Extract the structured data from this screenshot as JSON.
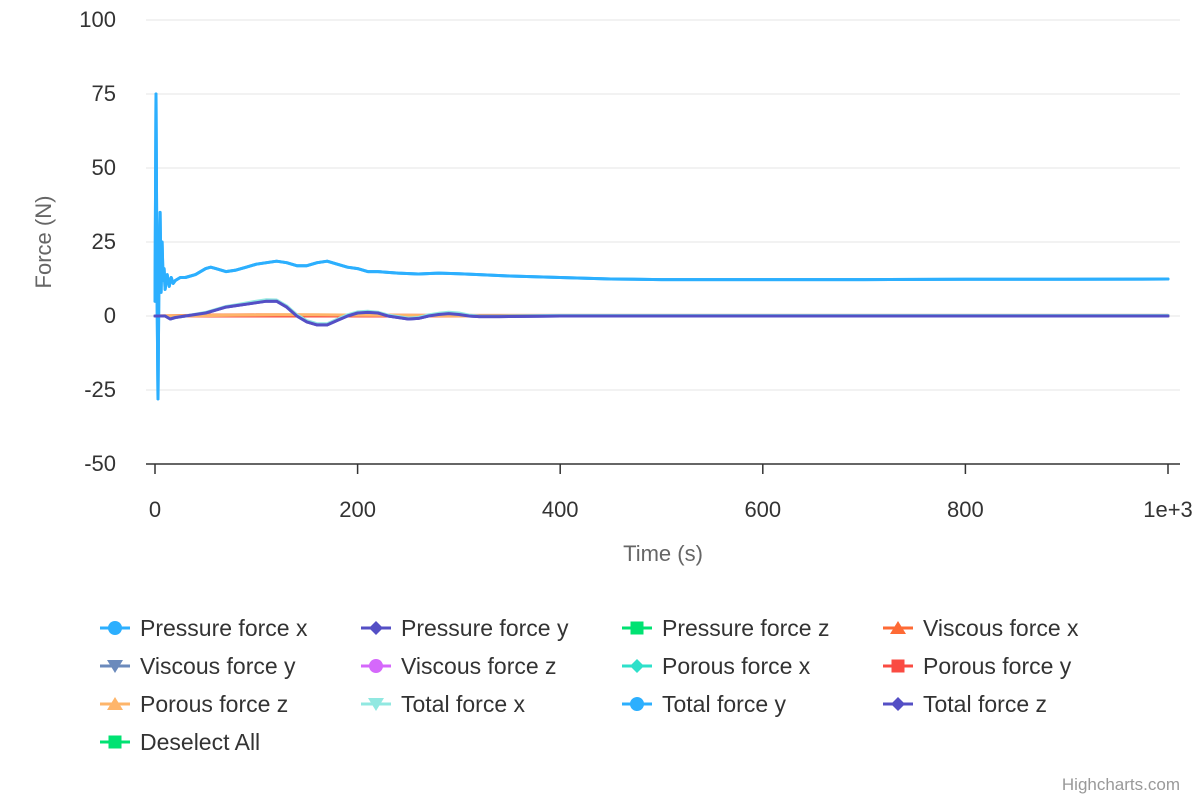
{
  "chart_data": {
    "type": "line",
    "title": "",
    "xlabel": "Time (s)",
    "ylabel": "Force (N)",
    "xlim": [
      0,
      1000
    ],
    "ylim": [
      -50,
      100
    ],
    "x_ticks": [
      "0",
      "200",
      "400",
      "600",
      "800",
      "1e+3"
    ],
    "y_ticks": [
      "100",
      "75",
      "50",
      "25",
      "0",
      "-25",
      "-50"
    ],
    "grid": true,
    "legend_position": "bottom",
    "series": [
      {
        "name": "Pressure force x",
        "color": "#2caffe",
        "marker": "circle",
        "x": [
          0,
          1,
          2,
          3,
          4,
          5,
          6,
          7,
          8,
          9,
          10,
          12,
          14,
          16,
          18,
          20,
          25,
          30,
          40,
          50,
          55,
          60,
          70,
          80,
          90,
          100,
          110,
          120,
          130,
          140,
          150,
          160,
          170,
          180,
          190,
          200,
          210,
          220,
          240,
          260,
          280,
          300,
          320,
          350,
          400,
          450,
          500,
          600,
          700,
          800,
          900,
          1000
        ],
        "y": [
          5,
          75,
          10,
          -28,
          20,
          35,
          8,
          25,
          12,
          16,
          9,
          14,
          10,
          13,
          11,
          12,
          13,
          13,
          14,
          16,
          16.5,
          16,
          15,
          15.5,
          16.5,
          17.5,
          18,
          18.5,
          18,
          17,
          17,
          18,
          18.5,
          17.5,
          16.5,
          16,
          15,
          15,
          14.5,
          14.2,
          14.5,
          14.3,
          14,
          13.5,
          13,
          12.5,
          12.3,
          12.3,
          12.3,
          12.4,
          12.4,
          12.5
        ]
      },
      {
        "name": "Pressure force y",
        "color": "#544fc5",
        "marker": "diamond",
        "x": [
          0,
          10,
          15,
          20,
          30,
          40,
          50,
          60,
          70,
          80,
          90,
          100,
          110,
          120,
          130,
          140,
          150,
          160,
          170,
          180,
          190,
          200,
          210,
          220,
          230,
          240,
          250,
          260,
          270,
          280,
          290,
          300,
          310,
          320,
          340,
          400,
          500,
          600,
          700,
          800,
          900,
          1000
        ],
        "y": [
          0,
          0,
          -1,
          -0.5,
          0,
          0.5,
          1,
          2,
          3,
          3.5,
          4,
          4.5,
          5,
          5,
          3,
          0,
          -2,
          -3,
          -3,
          -1.5,
          0,
          1,
          1.2,
          1,
          0,
          -0.5,
          -1,
          -0.8,
          0,
          0.5,
          0.8,
          0.5,
          0,
          -0.2,
          -0.2,
          0,
          0,
          0,
          0,
          0,
          0,
          0
        ]
      },
      {
        "name": "Pressure force z",
        "color": "#00e272",
        "marker": "square",
        "x": [
          0,
          1000
        ],
        "y": [
          0,
          0
        ]
      },
      {
        "name": "Viscous force x",
        "color": "#fe6a35",
        "marker": "triangle",
        "x": [
          0,
          50,
          100,
          200,
          300,
          1000
        ],
        "y": [
          0,
          0.3,
          0.4,
          0.3,
          0.2,
          0.2
        ]
      },
      {
        "name": "Viscous force y",
        "color": "#6b8abc",
        "marker": "triangle-down",
        "x": [
          0,
          1000
        ],
        "y": [
          0,
          0
        ]
      },
      {
        "name": "Viscous force z",
        "color": "#d568fb",
        "marker": "circle",
        "x": [
          0,
          1000
        ],
        "y": [
          0,
          0
        ]
      },
      {
        "name": "Porous force x",
        "color": "#2ee0ca",
        "marker": "diamond",
        "x": [
          0,
          1000
        ],
        "y": [
          0,
          0
        ]
      },
      {
        "name": "Porous force y",
        "color": "#fa4b42",
        "marker": "square",
        "x": [
          0,
          1000
        ],
        "y": [
          0,
          0
        ]
      },
      {
        "name": "Porous force z",
        "color": "#feb56a",
        "marker": "triangle",
        "x": [
          0,
          40,
          80,
          120,
          160,
          200,
          240,
          280,
          320,
          1000
        ],
        "y": [
          0,
          0.1,
          0.3,
          0.4,
          0.4,
          0.3,
          0.2,
          0.1,
          0,
          0
        ]
      },
      {
        "name": "Total force x",
        "color": "#91e8e1",
        "marker": "triangle-down",
        "x": [
          0,
          10,
          15,
          20,
          30,
          40,
          50,
          60,
          70,
          80,
          90,
          100,
          110,
          120,
          130,
          140,
          150,
          160,
          170,
          180,
          190,
          200,
          210,
          220,
          230,
          240,
          250,
          260,
          270,
          280,
          290,
          300,
          310,
          320,
          340,
          400,
          500,
          600,
          700,
          800,
          900,
          1000
        ],
        "y": [
          0,
          0,
          -1,
          -0.5,
          0,
          0.6,
          1.2,
          2.2,
          3.2,
          3.8,
          4.4,
          5,
          5.5,
          5.4,
          3.4,
          0.4,
          -1.6,
          -2.6,
          -2.6,
          -1.1,
          0.4,
          1.4,
          1.6,
          1.3,
          0.3,
          -0.2,
          -0.7,
          -0.5,
          0.4,
          0.9,
          1.3,
          1,
          0.3,
          0,
          0,
          0.2,
          0.2,
          0.2,
          0.2,
          0.2,
          0.2,
          0.2
        ]
      },
      {
        "name": "Total force y",
        "color": "#2caffe",
        "marker": "circle",
        "x": [
          0,
          1,
          2,
          3,
          4,
          5,
          6,
          7,
          8,
          9,
          10,
          12,
          14,
          16,
          18,
          20,
          25,
          30,
          40,
          50,
          55,
          60,
          70,
          80,
          90,
          100,
          110,
          120,
          130,
          140,
          150,
          160,
          170,
          180,
          190,
          200,
          210,
          220,
          240,
          260,
          280,
          300,
          320,
          350,
          400,
          450,
          500,
          600,
          700,
          800,
          900,
          1000
        ],
        "y": [
          5,
          75,
          10,
          -28,
          20,
          35,
          8,
          25,
          12,
          16,
          9,
          14,
          10,
          13,
          11,
          12,
          13,
          13,
          14,
          16,
          16.5,
          16,
          15,
          15.5,
          16.5,
          17.5,
          18,
          18.5,
          18,
          17,
          17,
          18,
          18.5,
          17.5,
          16.5,
          16,
          15,
          15,
          14.5,
          14.2,
          14.5,
          14.3,
          14,
          13.5,
          13,
          12.5,
          12.3,
          12.3,
          12.3,
          12.4,
          12.4,
          12.5
        ]
      },
      {
        "name": "Total force z",
        "color": "#544fc5",
        "marker": "diamond",
        "x": [
          0,
          10,
          15,
          20,
          30,
          40,
          50,
          60,
          70,
          80,
          90,
          100,
          110,
          120,
          130,
          140,
          150,
          160,
          170,
          180,
          190,
          200,
          210,
          220,
          230,
          240,
          250,
          260,
          270,
          280,
          290,
          300,
          310,
          320,
          340,
          400,
          500,
          600,
          700,
          800,
          900,
          1000
        ],
        "y": [
          0,
          0,
          -1,
          -0.5,
          0,
          0.5,
          1,
          2,
          3,
          3.5,
          4,
          4.5,
          5,
          5,
          3,
          0,
          -2,
          -3,
          -3,
          -1.5,
          0,
          1,
          1.2,
          1,
          0,
          -0.5,
          -1,
          -0.8,
          0,
          0.5,
          0.8,
          0.5,
          0,
          -0.2,
          -0.2,
          0,
          0,
          0,
          0,
          0,
          0,
          0
        ]
      }
    ],
    "extra_legend": {
      "name": "Deselect All",
      "color": "#00e272",
      "marker": "square"
    },
    "credits": "Highcharts.com"
  }
}
